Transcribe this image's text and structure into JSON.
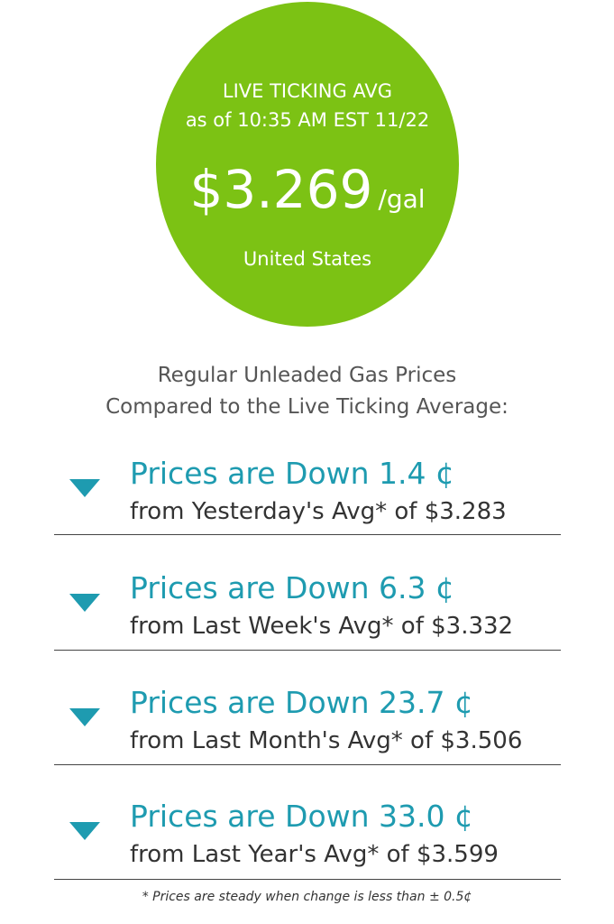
{
  "badge": {
    "label_line1": "LIVE TICKING AVG",
    "label_line2": "as of 10:35 AM EST 11/22",
    "price": "$3.269",
    "unit": "/gal",
    "region": "United States",
    "color": "#7cc214"
  },
  "heading": {
    "line1": "Regular Unleaded Gas Prices",
    "line2": "Compared to the Live Ticking Average:"
  },
  "comparisons": [
    {
      "title": "Prices are Down 1.4 ¢",
      "subtitle": "from Yesterday's Avg* of $3.283",
      "direction_icon": "down-triangle-icon"
    },
    {
      "title": "Prices are Down 6.3 ¢",
      "subtitle": "from Last Week's Avg* of $3.332",
      "direction_icon": "down-triangle-icon"
    },
    {
      "title": "Prices are Down 23.7 ¢",
      "subtitle": "from Last Month's Avg* of $3.506",
      "direction_icon": "down-triangle-icon"
    },
    {
      "title": "Prices are Down 33.0 ¢",
      "subtitle": "from Last Year's Avg* of $3.599",
      "direction_icon": "down-triangle-icon"
    }
  ],
  "accent_color": "#1e9bb0",
  "footnote": "* Prices are steady when change is less than ± 0.5¢"
}
